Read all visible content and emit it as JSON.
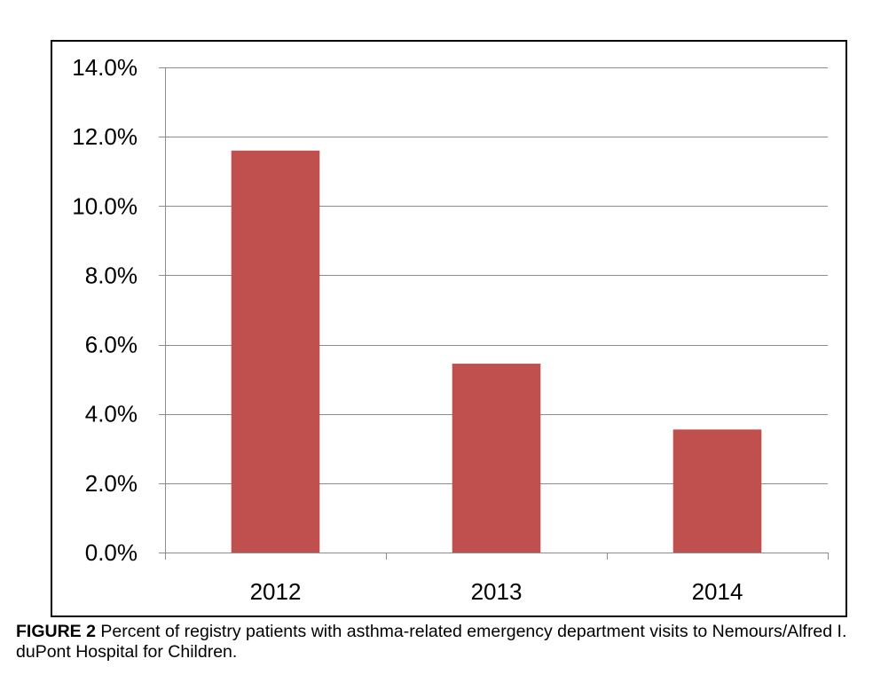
{
  "chart_data": {
    "type": "bar",
    "categories": [
      "2012",
      "2013",
      "2014"
    ],
    "values": [
      11.6,
      5.45,
      3.55
    ],
    "ylim": [
      0,
      14
    ],
    "y_ticks": [
      0,
      2,
      4,
      6,
      8,
      10,
      12,
      14
    ],
    "y_tick_labels": [
      "0.0%",
      "2.0%",
      "4.0%",
      "6.0%",
      "8.0%",
      "10.0%",
      "12.0%",
      "14.0%"
    ],
    "grid": true,
    "legend": "none",
    "bar_color": "#c0504d"
  },
  "caption": {
    "label": "FIGURE 2",
    "text": " Percent of registry patients with asthma-related emergency department visits to Nemours/Alfred I. duPont Hospital for Children."
  }
}
